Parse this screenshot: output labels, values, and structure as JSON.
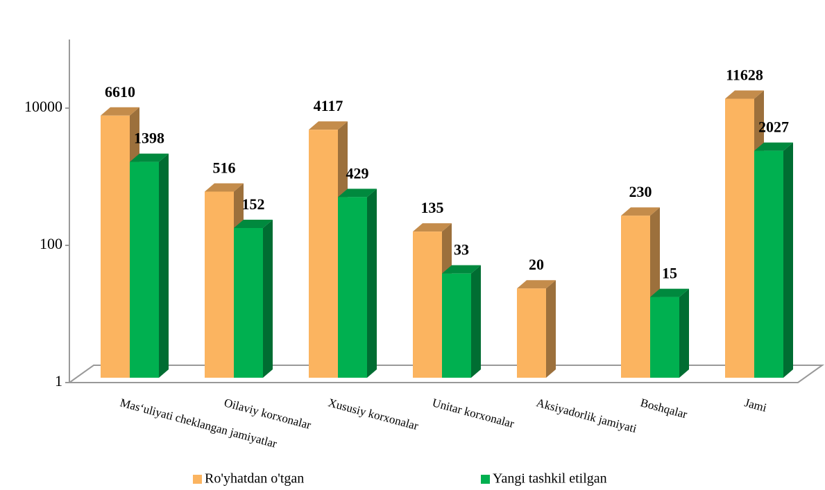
{
  "chart_data": {
    "type": "bar3d",
    "categories": [
      "Mas‘uliyati cheklangan jamiyatlar",
      "Oilaviy korxonalar",
      "Xususiy korxonalar",
      "Unitar korxonalar",
      "Aksiyadorlik jamiyati",
      "Boshqalar",
      "Jami"
    ],
    "series": [
      {
        "name": "Ro'yhatdan o'tgan",
        "color": "#fbb460",
        "values": [
          6610,
          516,
          4117,
          135,
          20,
          230,
          11628
        ]
      },
      {
        "name": "Yangi tashkil etilgan",
        "color": "#00b050",
        "values": [
          1398,
          152,
          429,
          33,
          null,
          15,
          2027
        ]
      }
    ],
    "ylim": [
      1,
      100000
    ],
    "yticks": [
      1,
      100,
      10000
    ],
    "log_scale": true,
    "legend": "bottom"
  }
}
